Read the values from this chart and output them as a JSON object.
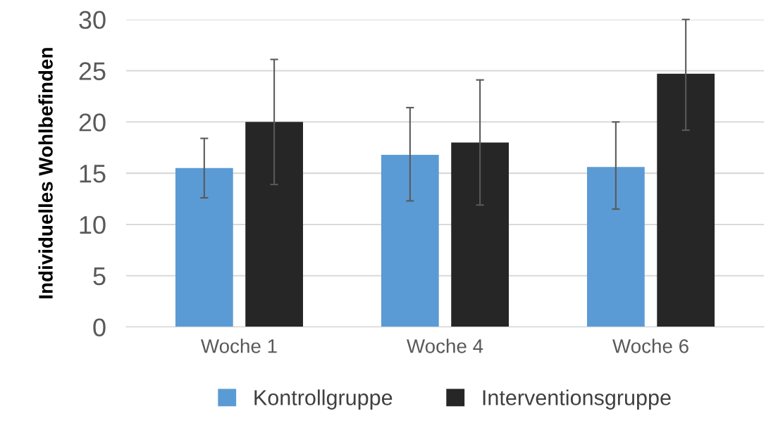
{
  "chart_data": {
    "type": "bar",
    "ylabel": "Individuelles Wohlbefinden",
    "categories": [
      "Woche 1",
      "Woche 4",
      "Woche 6"
    ],
    "series": [
      {
        "name": "Kontrollgruppe",
        "color": "#5b9bd5",
        "values": [
          15.5,
          16.8,
          15.6
        ],
        "errors": [
          [
            12.6,
            18.4
          ],
          [
            12.3,
            21.4
          ],
          [
            11.5,
            20.0
          ]
        ]
      },
      {
        "name": "Interventionsgruppe",
        "color": "#262626",
        "values": [
          20.0,
          18.0,
          24.7
        ],
        "errors": [
          [
            13.9,
            26.1
          ],
          [
            11.9,
            24.1
          ],
          [
            19.2,
            30.0
          ]
        ]
      }
    ],
    "ylim": [
      0,
      30
    ],
    "yticks": [
      0,
      5,
      10,
      15,
      20,
      25,
      30
    ],
    "grid": "y",
    "legend": "bottom"
  }
}
